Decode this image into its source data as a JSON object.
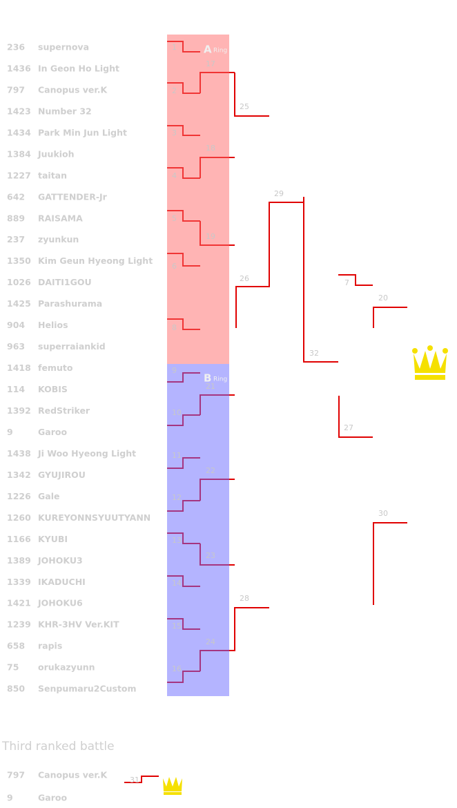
{
  "entrants": [
    {
      "id": "236",
      "name": "supernova"
    },
    {
      "id": "1436",
      "name": "In Geon Ho Light"
    },
    {
      "id": "797",
      "name": "Canopus   ver.K"
    },
    {
      "id": "1423",
      "name": "Number 32"
    },
    {
      "id": "1434",
      "name": "Park Min Jun Light"
    },
    {
      "id": "1384",
      "name": "Juukioh"
    },
    {
      "id": "1227",
      "name": "taitan"
    },
    {
      "id": "642",
      "name": "GATTENDER-Jr"
    },
    {
      "id": "889",
      "name": "RAISAMA"
    },
    {
      "id": "237",
      "name": "zyunkun"
    },
    {
      "id": "1350",
      "name": "Kim Geun Hyeong Light"
    },
    {
      "id": "1026",
      "name": "DAITI1GOU"
    },
    {
      "id": "1425",
      "name": "Parashurama"
    },
    {
      "id": "904",
      "name": "Helios"
    },
    {
      "id": "963",
      "name": "superraiankid"
    },
    {
      "id": "1418",
      "name": "femuto"
    },
    {
      "id": "114",
      "name": "KOBIS"
    },
    {
      "id": "1392",
      "name": "RedStriker"
    },
    {
      "id": "9",
      "name": "Garoo"
    },
    {
      "id": "1438",
      "name": "Ji Woo Hyeong Light"
    },
    {
      "id": "1342",
      "name": "GYUJIROU"
    },
    {
      "id": "1226",
      "name": "Gale"
    },
    {
      "id": "1260",
      "name": "KUREYONNSYUUTYANN"
    },
    {
      "id": "1166",
      "name": "KYUBI"
    },
    {
      "id": "1389",
      "name": "JOHOKU3"
    },
    {
      "id": "1339",
      "name": "IKADUCHI"
    },
    {
      "id": "1421",
      "name": "JOHOKU6"
    },
    {
      "id": "1239",
      "name": "KHR-3HV Ver.KIT"
    },
    {
      "id": "658",
      "name": "rapis"
    },
    {
      "id": "75",
      "name": "orukazyunn"
    },
    {
      "id": "850",
      "name": "Senpumaru2Custom"
    }
  ],
  "rings": [
    {
      "letter": "A",
      "label": "Ring"
    },
    {
      "letter": "B",
      "label": "Ring"
    }
  ],
  "matches": [
    "1",
    "2",
    "17",
    "3",
    "4",
    "18",
    "25",
    "5",
    "19",
    "6",
    "8",
    "26",
    "29",
    "32",
    "7",
    "20",
    "27",
    "30",
    "9",
    "10",
    "21",
    "11",
    "12",
    "22",
    "13",
    "23",
    "14",
    "15",
    "16",
    "24",
    "28"
  ],
  "third_place": {
    "title": "Third ranked battle",
    "entrants": [
      {
        "id": "797",
        "name": "Canopus   ver.K"
      },
      {
        "id": "9",
        "name": "Garoo"
      }
    ],
    "match": "31"
  }
}
